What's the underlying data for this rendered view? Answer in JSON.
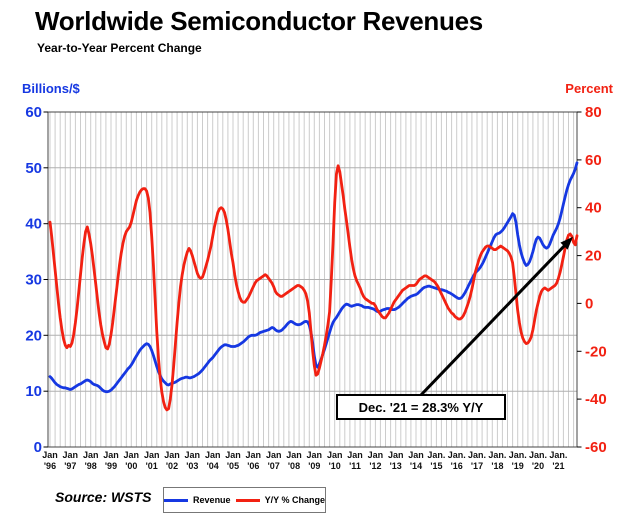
{
  "chart_data": {
    "type": "line",
    "title": "Worldwide Semiconductor Revenues",
    "subtitle": "Year-to-Year Percent Change",
    "source": "Source: WSTS",
    "x": {
      "unit": "month",
      "start": "1996-01",
      "end": "2021-12",
      "tick_month_labels": [
        "Jan",
        "Jan",
        "Jan",
        "Jan",
        "Jan",
        "Jan",
        "Jan",
        "Jan",
        "Jan",
        "Jan",
        "Jan",
        "Jan",
        "Jan",
        "Jan",
        "Jan",
        "Jan",
        "Jan",
        "Jan",
        "Jan",
        "Jan.",
        "Jan.",
        "Jan.",
        "Jan.",
        "Jan.",
        "Jan.",
        "Jan."
      ],
      "tick_year_labels": [
        "'96",
        "'97",
        "'98",
        "'99",
        "'00",
        "'01",
        "'02",
        "'03",
        "'04",
        "'05",
        "'06",
        "'07",
        "'08",
        "'09",
        "'10",
        "'11",
        "'12",
        "'13",
        "'14",
        "'15",
        "'16",
        "'17",
        "'18",
        "'19",
        "'20",
        "'21"
      ]
    },
    "left_axis": {
      "unit_label": "Billions/$",
      "min": 0,
      "max": 60,
      "step": 10,
      "tick_labels": [
        "60",
        "50",
        "40",
        "30",
        "20",
        "10",
        "0"
      ],
      "color": "#1638e2"
    },
    "right_axis": {
      "unit_label": "Percent",
      "min": -60,
      "max": 80,
      "step": 20,
      "tick_labels": [
        "80",
        "60",
        "40",
        "20",
        "0",
        "-20",
        "-40",
        "-60"
      ],
      "color": "#f22112"
    },
    "grid": {
      "vertical_every_months": 3,
      "vertical_color": "#cccccc",
      "horizontal_color": "#b0b0b0",
      "frame_color": "#444444"
    },
    "series": [
      {
        "name": "Revenue",
        "axis": "left",
        "color": "#1638e2",
        "monthly_by_year": {
          "1996": [
            12.6,
            12.3,
            11.9,
            11.5,
            11.2,
            11.0,
            10.8,
            10.7,
            10.6,
            10.6,
            10.5,
            10.4
          ],
          "1997": [
            10.3,
            10.4,
            10.6,
            10.8,
            11.0,
            11.2,
            11.3,
            11.5,
            11.7,
            11.9,
            12.0,
            11.9
          ],
          "1998": [
            11.7,
            11.4,
            11.2,
            11.1,
            11.0,
            10.8,
            10.5,
            10.2,
            10.0,
            9.9,
            9.9,
            10.0
          ],
          "1999": [
            10.2,
            10.5,
            10.8,
            11.2,
            11.6,
            12.0,
            12.4,
            12.8,
            13.2,
            13.6,
            14.0,
            14.3
          ],
          "2000": [
            14.7,
            15.2,
            15.8,
            16.3,
            16.8,
            17.3,
            17.7,
            18.0,
            18.3,
            18.5,
            18.4,
            18.0
          ],
          "2001": [
            17.3,
            16.4,
            15.4,
            14.4,
            13.5,
            12.8,
            12.2,
            11.8,
            11.5,
            11.2,
            11.1,
            11.3
          ],
          "2002": [
            11.4,
            11.5,
            11.6,
            11.8,
            12.0,
            12.2,
            12.3,
            12.4,
            12.5,
            12.5,
            12.4,
            12.4
          ],
          "2003": [
            12.5,
            12.6,
            12.8,
            13.0,
            13.2,
            13.5,
            13.8,
            14.2,
            14.6,
            15.0,
            15.4,
            15.7
          ],
          "2004": [
            16.0,
            16.4,
            16.8,
            17.2,
            17.6,
            17.9,
            18.1,
            18.3,
            18.3,
            18.2,
            18.1,
            18.0
          ],
          "2005": [
            18.0,
            18.0,
            18.1,
            18.2,
            18.4,
            18.6,
            18.8,
            19.1,
            19.4,
            19.7,
            19.9,
            20.0
          ],
          "2006": [
            20.0,
            20.0,
            20.1,
            20.3,
            20.5,
            20.6,
            20.7,
            20.8,
            20.9,
            21.0,
            21.2,
            21.4
          ],
          "2007": [
            21.3,
            21.0,
            20.8,
            20.7,
            20.8,
            21.0,
            21.3,
            21.6,
            22.0,
            22.3,
            22.5,
            22.4
          ],
          "2008": [
            22.2,
            22.0,
            21.9,
            21.9,
            22.0,
            22.2,
            22.4,
            22.5,
            22.4,
            21.8,
            20.5,
            18.6
          ],
          "2009": [
            16.3,
            14.6,
            14.3,
            14.9,
            15.7,
            16.6,
            17.5,
            18.5,
            19.5,
            20.5,
            21.5,
            22.3
          ],
          "2010": [
            22.8,
            23.2,
            23.7,
            24.2,
            24.7,
            25.1,
            25.4,
            25.6,
            25.5,
            25.3,
            25.2,
            25.3
          ],
          "2011": [
            25.4,
            25.5,
            25.5,
            25.4,
            25.3,
            25.1,
            25.0,
            25.0,
            25.0,
            24.9,
            24.8,
            24.7
          ],
          "2012": [
            24.5,
            24.3,
            24.2,
            24.3,
            24.5,
            24.6,
            24.7,
            24.8,
            24.8,
            24.7,
            24.6,
            24.6
          ],
          "2013": [
            24.7,
            24.9,
            25.1,
            25.4,
            25.7,
            26.0,
            26.3,
            26.6,
            26.8,
            27.0,
            27.1,
            27.2
          ],
          "2014": [
            27.3,
            27.5,
            27.8,
            28.1,
            28.4,
            28.6,
            28.7,
            28.8,
            28.8,
            28.7,
            28.6,
            28.5
          ],
          "2015": [
            28.4,
            28.3,
            28.2,
            28.2,
            28.1,
            28.0,
            27.9,
            27.7,
            27.6,
            27.4,
            27.2,
            27.0
          ],
          "2016": [
            26.8,
            26.6,
            26.6,
            26.8,
            27.2,
            27.7,
            28.3,
            28.9,
            29.5,
            30.1,
            30.7,
            31.2
          ],
          "2017": [
            31.5,
            31.8,
            32.2,
            32.7,
            33.3,
            34.0,
            34.7,
            35.4,
            36.1,
            36.8,
            37.5,
            38.0
          ],
          "2018": [
            38.2,
            38.3,
            38.5,
            38.8,
            39.2,
            39.7,
            40.2,
            40.7,
            41.2,
            41.8,
            41.5,
            40.2
          ],
          "2019": [
            38.0,
            36.2,
            34.8,
            33.8,
            33.0,
            32.5,
            32.7,
            33.2,
            34.0,
            35.0,
            36.2,
            37.2
          ],
          "2020": [
            37.6,
            37.4,
            36.8,
            36.2,
            35.8,
            35.6,
            35.8,
            36.4,
            37.2,
            38.0,
            38.6,
            39.2
          ],
          "2021": [
            40.0,
            41.0,
            42.2,
            43.5,
            44.8,
            46.0,
            47.0,
            47.8,
            48.4,
            49.0,
            49.8,
            50.9
          ]
        }
      },
      {
        "name": "Y/Y % Change",
        "axis": "right",
        "color": "#f22112",
        "monthly_by_year": {
          "1996": [
            34,
            28,
            21,
            14,
            7,
            0,
            -6,
            -11,
            -15,
            -17.5,
            -18.5,
            -17.5
          ],
          "1997": [
            -18,
            -16.5,
            -13,
            -8,
            -2,
            5,
            12,
            19,
            25,
            30,
            32,
            29
          ],
          "1998": [
            25,
            20,
            14,
            8,
            2,
            -4,
            -9,
            -13,
            -16,
            -18.5,
            -19,
            -17
          ],
          "1999": [
            -13,
            -8,
            -2,
            4,
            10,
            16,
            21,
            25,
            28,
            30,
            31,
            32
          ],
          "2000": [
            34,
            37,
            40,
            43,
            45,
            46.5,
            47.5,
            48,
            48,
            47,
            44,
            38
          ],
          "2001": [
            28,
            16,
            2,
            -12,
            -23,
            -31,
            -37,
            -41,
            -43.5,
            -44.5,
            -44,
            -40
          ],
          "2002": [
            -34,
            -26,
            -17,
            -8,
            0,
            7,
            12,
            16,
            19,
            21.5,
            23,
            22
          ],
          "2003": [
            20,
            17.5,
            15,
            12.5,
            11,
            10.5,
            11,
            13,
            15.5,
            18,
            21,
            24
          ],
          "2004": [
            28,
            32,
            35,
            38,
            39.5,
            40,
            39.5,
            38,
            35,
            31,
            26,
            21
          ],
          "2005": [
            17,
            12,
            8,
            5,
            2.5,
            1,
            0.5,
            0.5,
            1.5,
            2.5,
            4,
            5.5
          ],
          "2006": [
            7,
            8.5,
            9.5,
            10,
            10.5,
            11,
            11.5,
            12,
            11.5,
            10.5,
            9.5,
            8.5
          ],
          "2007": [
            7,
            5,
            4,
            3.5,
            3,
            3,
            3.5,
            4,
            4.5,
            5,
            5.5,
            6
          ],
          "2008": [
            6.5,
            7,
            7.5,
            7.5,
            7,
            6.5,
            5.5,
            4,
            1,
            -4,
            -12,
            -20
          ],
          "2009": [
            -26,
            -30,
            -29.5,
            -27,
            -24,
            -21,
            -17.5,
            -13.5,
            -9,
            -3.5,
            10,
            25
          ],
          "2010": [
            42,
            54,
            57.5,
            55,
            50,
            45,
            39.5,
            34.5,
            29,
            23.5,
            18.5,
            14.5
          ],
          "2011": [
            11.5,
            9.5,
            8,
            6.5,
            4.5,
            3,
            2,
            1.5,
            1,
            0.5,
            0,
            0
          ],
          "2012": [
            -1,
            -2.5,
            -3.5,
            -4.5,
            -5.5,
            -6,
            -6,
            -5,
            -4,
            -2.5,
            -1,
            0.5
          ],
          "2013": [
            1.5,
            2.5,
            3.5,
            4.5,
            5.5,
            6,
            6.5,
            7,
            7.5,
            7.5,
            7.5,
            7.5
          ],
          "2014": [
            8,
            9,
            10,
            10.5,
            11,
            11.5,
            11.5,
            11,
            10.5,
            10,
            9.5,
            9
          ],
          "2015": [
            8,
            7,
            5.5,
            4,
            2.5,
            1,
            -0.5,
            -2,
            -3,
            -4,
            -4.5,
            -5.5
          ],
          "2016": [
            -6,
            -6.5,
            -6.5,
            -6,
            -5,
            -3.5,
            -1.5,
            0.5,
            3,
            6,
            9.5,
            13
          ],
          "2017": [
            15.5,
            18,
            20,
            21.5,
            22.5,
            23.5,
            24,
            24,
            23.5,
            23,
            22.5,
            22.5
          ],
          "2018": [
            23,
            23.5,
            24,
            23.5,
            23,
            22.5,
            22,
            21,
            19.5,
            17,
            11,
            4
          ],
          "2019": [
            -3,
            -8,
            -12,
            -14.5,
            -16,
            -16.8,
            -16.5,
            -15.5,
            -14,
            -11,
            -7,
            -3
          ],
          "2020": [
            0,
            3,
            5,
            6,
            6.5,
            6,
            5.5,
            6,
            6.5,
            7,
            7.5,
            8.5
          ],
          "2021": [
            10.5,
            13,
            16,
            19.5,
            23,
            26.5,
            28.5,
            29,
            28,
            25.5,
            24.5,
            28.3
          ]
        }
      }
    ],
    "annotation": {
      "text": "Dec. '21 = 28.3% Y/Y",
      "points_to": "2021-12",
      "value_pct": 28.3
    }
  }
}
